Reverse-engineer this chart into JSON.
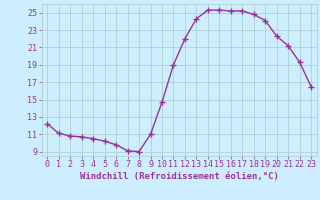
{
  "x": [
    0,
    1,
    2,
    3,
    4,
    5,
    6,
    7,
    8,
    9,
    10,
    11,
    12,
    13,
    14,
    15,
    16,
    17,
    18,
    19,
    20,
    21,
    22,
    23
  ],
  "y": [
    12.2,
    11.1,
    10.8,
    10.7,
    10.5,
    10.2,
    9.8,
    9.1,
    9.0,
    11.0,
    14.7,
    19.0,
    22.0,
    24.3,
    25.3,
    25.3,
    25.2,
    25.2,
    24.8,
    24.1,
    22.3,
    21.2,
    19.3,
    16.5
  ],
  "line_color": "#993399",
  "marker": "+",
  "marker_size": 4,
  "marker_edge_width": 1.0,
  "background_color": "#cceeff",
  "grid_color": "#aacccc",
  "xlabel": "Windchill (Refroidissement éolien,°C)",
  "xlabel_color": "#993399",
  "tick_color": "#993399",
  "ylim": [
    8.5,
    26.0
  ],
  "xlim": [
    -0.5,
    23.5
  ],
  "yticks": [
    9,
    11,
    13,
    15,
    17,
    19,
    21,
    23,
    25
  ],
  "xticks": [
    0,
    1,
    2,
    3,
    4,
    5,
    6,
    7,
    8,
    9,
    10,
    11,
    12,
    13,
    14,
    15,
    16,
    17,
    18,
    19,
    20,
    21,
    22,
    23
  ],
  "xlabel_fontsize": 6.5,
  "tick_fontsize": 6,
  "line_width": 1.0
}
